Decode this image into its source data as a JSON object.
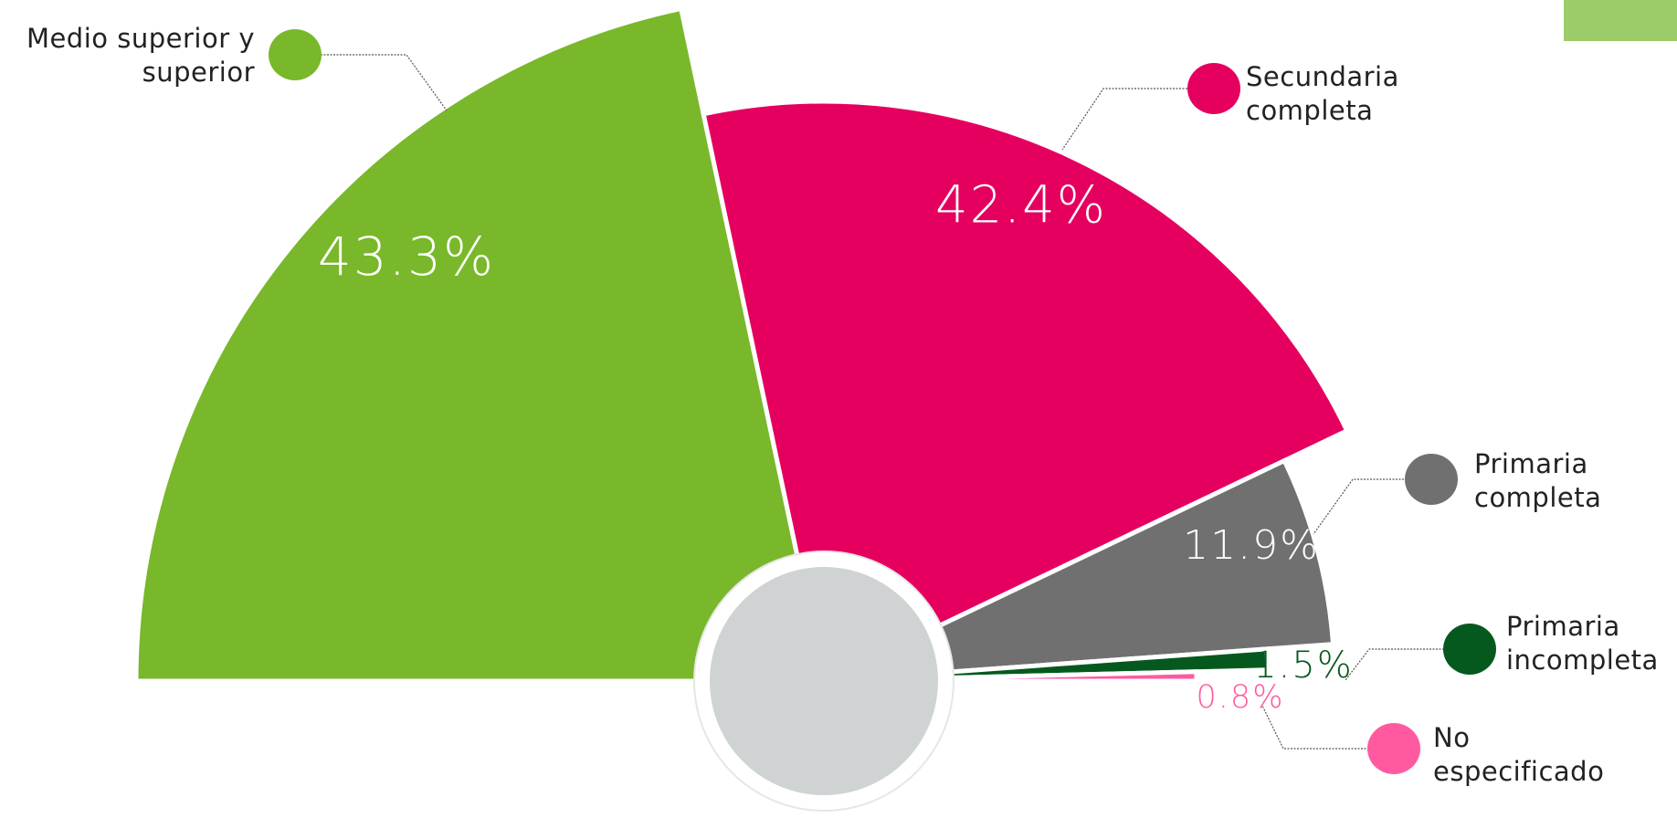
{
  "chart_data": {
    "type": "pie",
    "categories": [
      "Medio superior y superior",
      "Secundaria completa",
      "Primaria completa",
      "Primaria incompleta",
      "No especificado"
    ],
    "values": [
      43.3,
      42.4,
      11.9,
      1.5,
      0.8
    ],
    "value_labels": [
      "43.3%",
      "42.4%",
      "11.9%",
      "1.5%",
      "0.8%"
    ],
    "colors": [
      "#78b82a",
      "#e5005f",
      "#707070",
      "#05591f",
      "#ff5aa0"
    ]
  }
}
